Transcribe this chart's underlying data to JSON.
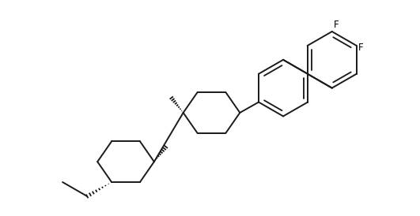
{
  "bg_color": "#ffffff",
  "line_color": "#1a1a1a",
  "line_width": 1.4,
  "fig_width": 5.31,
  "fig_height": 2.74,
  "dpi": 100,
  "xlim": [
    0,
    10.62
  ],
  "ylim": [
    0,
    5.48
  ]
}
